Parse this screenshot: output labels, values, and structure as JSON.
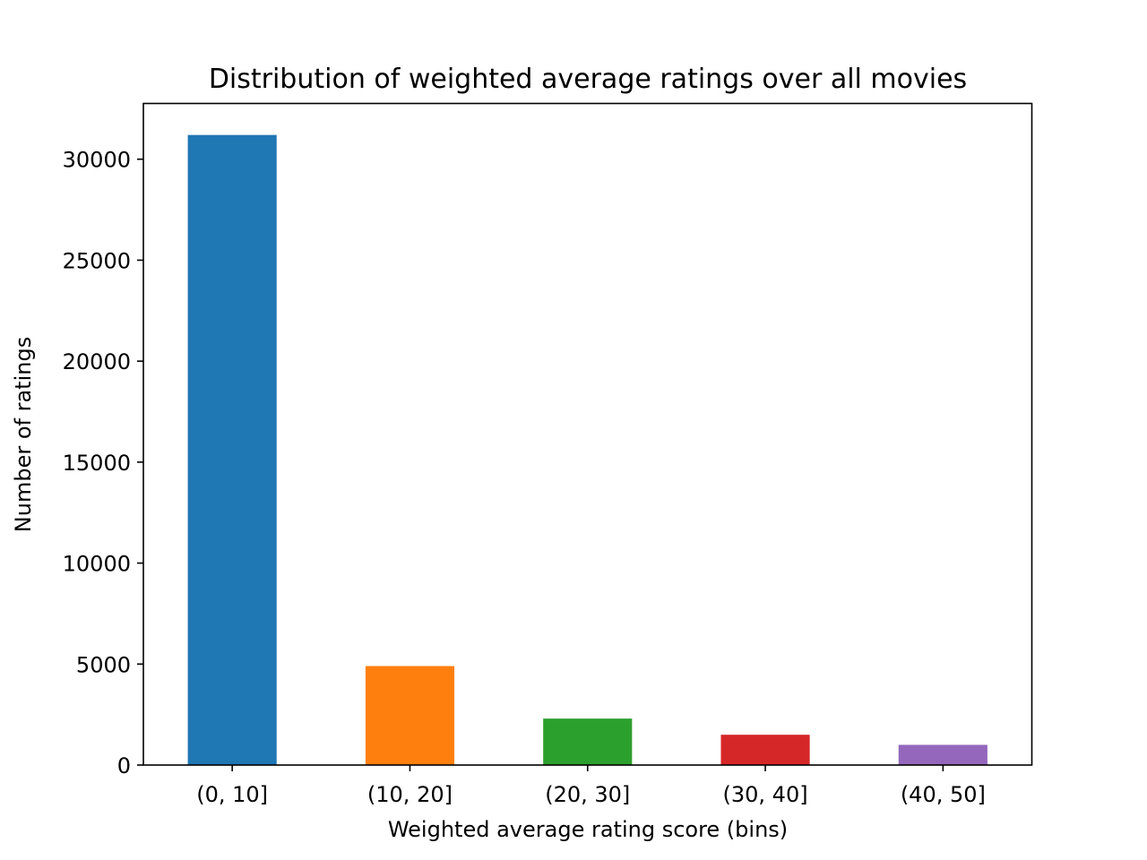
{
  "chart_data": {
    "type": "bar",
    "title": "Distribution of weighted average ratings over all movies",
    "xlabel": "Weighted average rating score (bins)",
    "ylabel": "Number of ratings",
    "categories": [
      "(0, 10]",
      "(10, 20]",
      "(20, 30]",
      "(30, 40]",
      "(40, 50]"
    ],
    "values": [
      31200,
      4900,
      2300,
      1500,
      1000
    ],
    "colors": [
      "#1f77b4",
      "#ff7f0e",
      "#2ca02c",
      "#d62728",
      "#9467bd"
    ],
    "ylim": [
      0,
      32760
    ],
    "yticks": [
      0,
      5000,
      10000,
      15000,
      20000,
      25000,
      30000
    ],
    "ytick_labels": [
      "0",
      "5000",
      "10000",
      "15000",
      "20000",
      "25000",
      "30000"
    ],
    "grid": false,
    "legend": false
  }
}
